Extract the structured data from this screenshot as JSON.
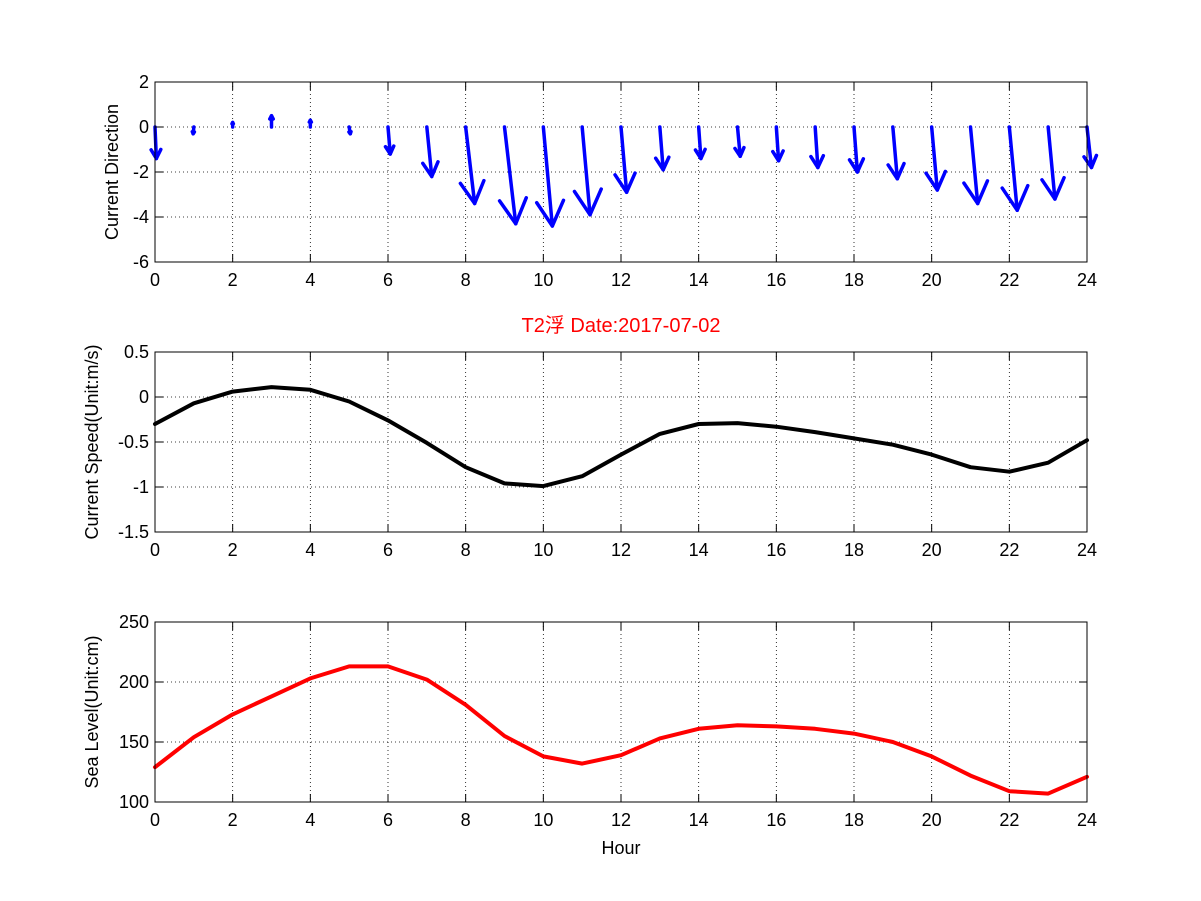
{
  "chart_data": [
    {
      "type": "quiver",
      "xlabel": "",
      "ylabel": "Current Direction",
      "title": "",
      "xlim": [
        0,
        24
      ],
      "ylim": [
        -6,
        2
      ],
      "xticks": [
        0,
        2,
        4,
        6,
        8,
        10,
        12,
        14,
        16,
        18,
        20,
        22,
        24
      ],
      "yticks": [
        2,
        0,
        -2,
        -4,
        -6
      ],
      "grid": true,
      "color": "#0000ff",
      "x": [
        0,
        1,
        2,
        3,
        4,
        5,
        6,
        7,
        8,
        9,
        10,
        11,
        12,
        13,
        14,
        15,
        16,
        17,
        18,
        19,
        20,
        21,
        22,
        23,
        24
      ],
      "u": [
        0.06,
        -0.03,
        0.0,
        0.0,
        0.0,
        0.05,
        0.1,
        0.22,
        0.4,
        0.5,
        0.4,
        0.35,
        0.25,
        0.15,
        0.1,
        0.12,
        0.1,
        0.12,
        0.15,
        0.2,
        0.25,
        0.32,
        0.35,
        0.3,
        0.2
      ],
      "v": [
        -1.4,
        -0.3,
        0.2,
        0.5,
        0.3,
        -0.3,
        -1.2,
        -2.2,
        -3.4,
        -4.3,
        -4.4,
        -3.9,
        -2.9,
        -1.9,
        -1.4,
        -1.3,
        -1.5,
        -1.8,
        -2.0,
        -2.3,
        -2.8,
        -3.4,
        -3.7,
        -3.2,
        -1.8
      ]
    },
    {
      "type": "line",
      "title": "T2浮    Date:2017-07-02",
      "xlabel": "",
      "ylabel": "Current Speed(Unit:m/s)",
      "xlim": [
        0,
        24
      ],
      "ylim": [
        -1.5,
        0.5
      ],
      "xticks": [
        0,
        2,
        4,
        6,
        8,
        10,
        12,
        14,
        16,
        18,
        20,
        22,
        24
      ],
      "yticks": [
        0.5,
        0,
        -0.5,
        -1,
        -1.5
      ],
      "ytick_labels": [
        "0.5",
        "0",
        "-0.5",
        "-1",
        "-1.5"
      ],
      "grid": true,
      "color": "#000000",
      "x": [
        0,
        1,
        2,
        3,
        4,
        5,
        6,
        7,
        8,
        9,
        10,
        11,
        12,
        13,
        14,
        15,
        16,
        17,
        18,
        19,
        20,
        21,
        22,
        23,
        24
      ],
      "y": [
        -0.3,
        -0.07,
        0.06,
        0.11,
        0.08,
        -0.05,
        -0.26,
        -0.51,
        -0.78,
        -0.96,
        -0.99,
        -0.88,
        -0.64,
        -0.41,
        -0.3,
        -0.29,
        -0.33,
        -0.39,
        -0.46,
        -0.53,
        -0.64,
        -0.78,
        -0.83,
        -0.73,
        -0.48
      ]
    },
    {
      "type": "line",
      "title": "",
      "xlabel": "Hour",
      "ylabel": "Sea Level(Unit:cm)",
      "xlim": [
        0,
        24
      ],
      "ylim": [
        100,
        250
      ],
      "xticks": [
        0,
        2,
        4,
        6,
        8,
        10,
        12,
        14,
        16,
        18,
        20,
        22,
        24
      ],
      "yticks": [
        250,
        200,
        150,
        100
      ],
      "grid": true,
      "color": "#ff0000",
      "x": [
        0,
        1,
        2,
        3,
        4,
        5,
        6,
        7,
        8,
        9,
        10,
        11,
        12,
        13,
        14,
        15,
        16,
        17,
        18,
        19,
        20,
        21,
        22,
        23,
        24
      ],
      "y": [
        129,
        154,
        173,
        188,
        203,
        213,
        213,
        202,
        181,
        155,
        138,
        132,
        139,
        153,
        161,
        164,
        163,
        161,
        157,
        150,
        138,
        122,
        109,
        107,
        121
      ]
    }
  ]
}
